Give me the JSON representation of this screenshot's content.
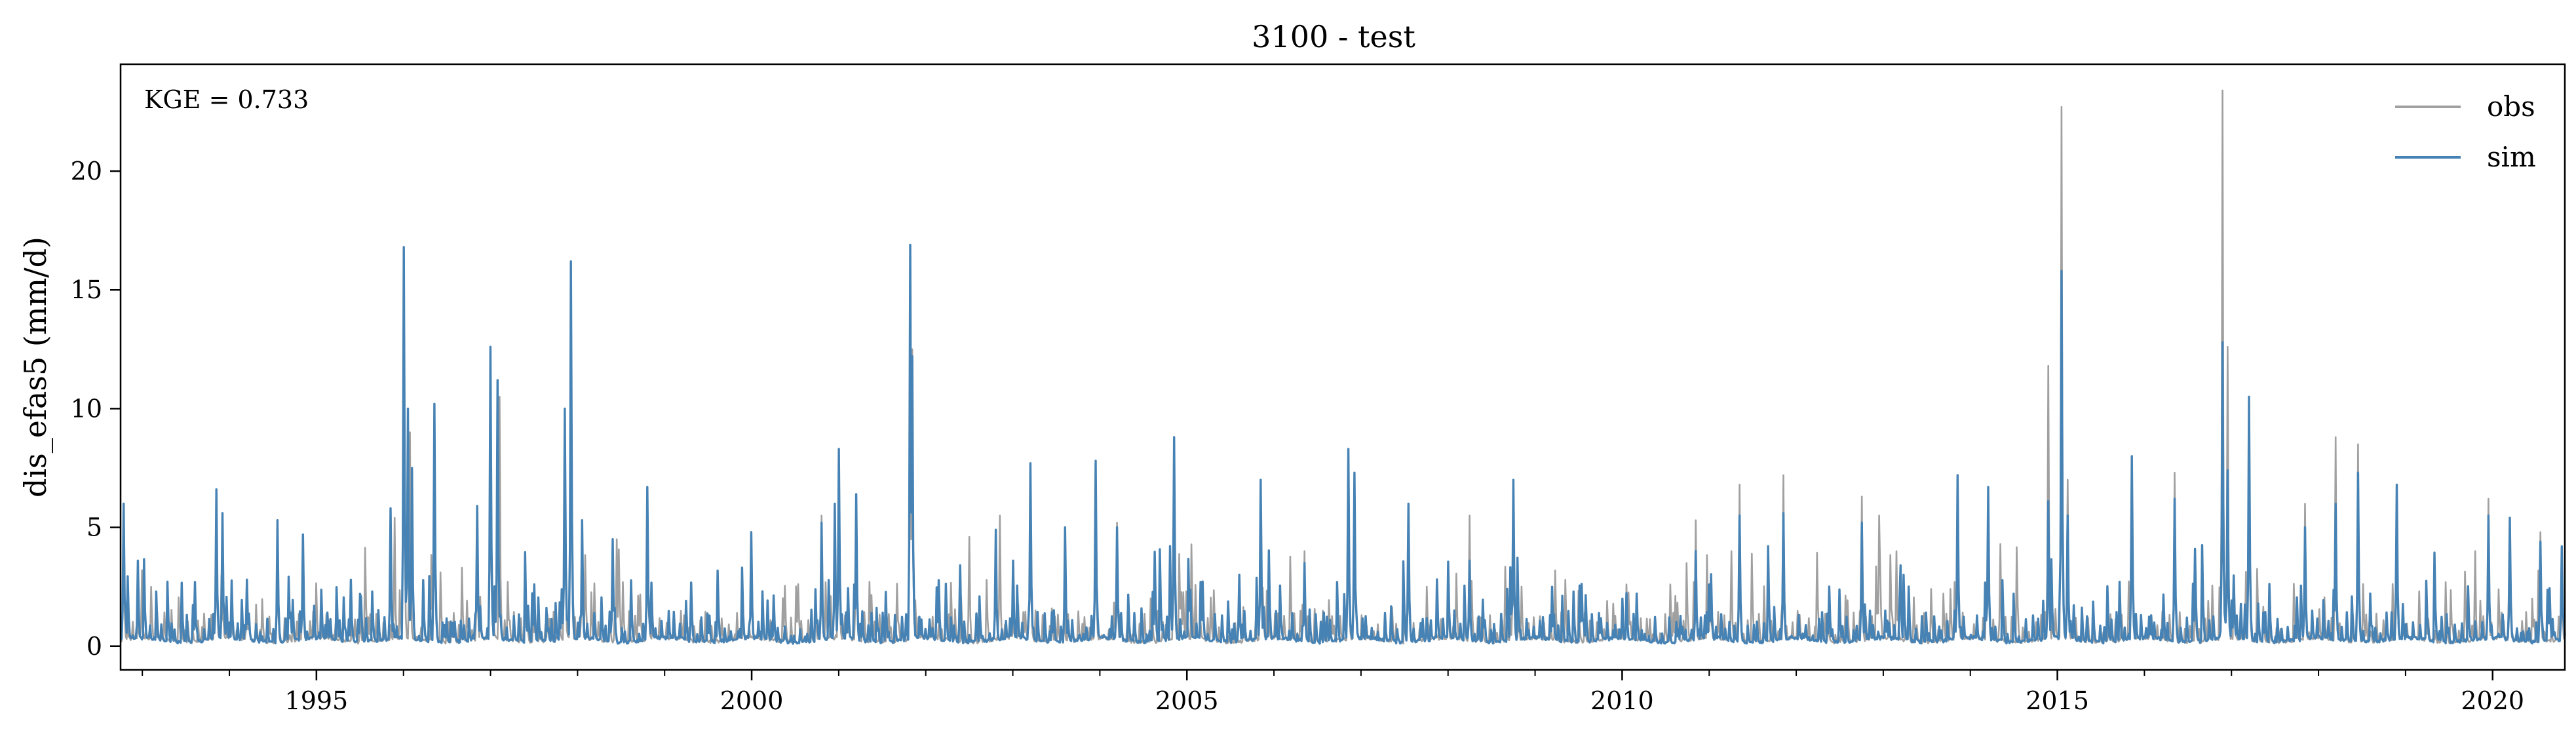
{
  "chart_data": {
    "type": "line",
    "title": "3100 - test",
    "xlabel": "",
    "ylabel": "dis_efas5 (mm/d)",
    "annotation": "KGE = 0.733",
    "xlim": [
      1992.75,
      2020.83
    ],
    "ylim": [
      -1.0,
      24.5
    ],
    "xticks": [
      {
        "value": 1995,
        "label": "1995"
      },
      {
        "value": 2000,
        "label": "2000"
      },
      {
        "value": 2005,
        "label": "2005"
      },
      {
        "value": 2010,
        "label": "2010"
      },
      {
        "value": 2015,
        "label": "2015"
      },
      {
        "value": 2020,
        "label": "2020"
      }
    ],
    "yticks": [
      {
        "value": 0,
        "label": "0"
      },
      {
        "value": 5,
        "label": "5"
      },
      {
        "value": 10,
        "label": "10"
      },
      {
        "value": 15,
        "label": "15"
      },
      {
        "value": 20,
        "label": "20"
      }
    ],
    "legend": {
      "location": "upper-right",
      "entries": [
        "obs",
        "sim"
      ]
    },
    "baseflow": {
      "min": 0.1,
      "max": 0.6
    },
    "series": [
      {
        "name": "obs",
        "color": "#a0a0a0",
        "peaks": [
          [
            1992.78,
            5.5
          ],
          [
            1993.0,
            3.2
          ],
          [
            1993.85,
            6.2
          ],
          [
            1994.2,
            2.6
          ],
          [
            1994.55,
            4.8
          ],
          [
            1994.85,
            4.3
          ],
          [
            1995.9,
            5.4
          ],
          [
            1996.0,
            15.8
          ],
          [
            1996.08,
            9.0
          ],
          [
            1996.35,
            9.5
          ],
          [
            1996.85,
            5.2
          ],
          [
            1997.0,
            12.0
          ],
          [
            1997.1,
            10.5
          ],
          [
            1997.85,
            9.3
          ],
          [
            1997.92,
            15.5
          ],
          [
            1998.05,
            5.0
          ],
          [
            1998.45,
            4.5
          ],
          [
            1998.8,
            6.3
          ],
          [
            2000.8,
            5.5
          ],
          [
            2001.0,
            8.0
          ],
          [
            2001.2,
            6.2
          ],
          [
            2001.82,
            16.5
          ],
          [
            2001.85,
            12.5
          ],
          [
            2002.5,
            4.6
          ],
          [
            2002.85,
            5.5
          ],
          [
            2003.2,
            7.4
          ],
          [
            2003.95,
            7.5
          ],
          [
            2004.2,
            5.2
          ],
          [
            2004.85,
            8.6
          ],
          [
            2005.85,
            6.7
          ],
          [
            2006.35,
            4.0
          ],
          [
            2006.85,
            8.0
          ],
          [
            2006.92,
            7.3
          ],
          [
            2007.55,
            5.9
          ],
          [
            2008.25,
            5.5
          ],
          [
            2008.75,
            6.8
          ],
          [
            2010.05,
            2.6
          ],
          [
            2010.85,
            5.3
          ],
          [
            2011.25,
            4.0
          ],
          [
            2011.35,
            6.8
          ],
          [
            2011.85,
            7.2
          ],
          [
            2012.75,
            6.3
          ],
          [
            2012.95,
            5.5
          ],
          [
            2013.15,
            4.0
          ],
          [
            2013.85,
            7.0
          ],
          [
            2014.2,
            6.4
          ],
          [
            2014.35,
            4.3
          ],
          [
            2014.9,
            11.8
          ],
          [
            2015.05,
            22.7
          ],
          [
            2015.12,
            7.0
          ],
          [
            2015.85,
            7.7
          ],
          [
            2016.35,
            7.3
          ],
          [
            2016.9,
            23.4
          ],
          [
            2016.95,
            12.6
          ],
          [
            2017.2,
            10.3
          ],
          [
            2017.85,
            6.0
          ],
          [
            2018.2,
            8.8
          ],
          [
            2018.45,
            8.5
          ],
          [
            2018.9,
            6.4
          ],
          [
            2019.8,
            4.0
          ],
          [
            2019.95,
            6.2
          ],
          [
            2020.2,
            5.2
          ],
          [
            2020.55,
            4.8
          ],
          [
            2020.8,
            4.0
          ]
        ]
      },
      {
        "name": "sim",
        "color": "#4682b4",
        "peaks": [
          [
            1992.78,
            6.0
          ],
          [
            1992.95,
            3.6
          ],
          [
            1993.6,
            2.7
          ],
          [
            1993.85,
            6.6
          ],
          [
            1993.92,
            5.6
          ],
          [
            1994.2,
            2.8
          ],
          [
            1994.55,
            5.3
          ],
          [
            1994.85,
            4.7
          ],
          [
            1995.5,
            2.2
          ],
          [
            1995.85,
            5.8
          ],
          [
            1996.0,
            16.8
          ],
          [
            1996.05,
            10.0
          ],
          [
            1996.1,
            7.5
          ],
          [
            1996.35,
            10.2
          ],
          [
            1996.85,
            5.9
          ],
          [
            1997.0,
            12.6
          ],
          [
            1997.08,
            11.2
          ],
          [
            1997.5,
            2.6
          ],
          [
            1997.85,
            10.0
          ],
          [
            1997.92,
            16.2
          ],
          [
            1998.05,
            5.3
          ],
          [
            1998.4,
            4.5
          ],
          [
            1998.8,
            6.7
          ],
          [
            1999.3,
            2.2
          ],
          [
            2000.0,
            4.8
          ],
          [
            2000.8,
            5.2
          ],
          [
            2000.95,
            6.0
          ],
          [
            2001.0,
            8.3
          ],
          [
            2001.2,
            6.4
          ],
          [
            2001.82,
            16.9
          ],
          [
            2001.85,
            12.2
          ],
          [
            2002.4,
            3.4
          ],
          [
            2002.8,
            4.9
          ],
          [
            2003.0,
            3.6
          ],
          [
            2003.2,
            7.7
          ],
          [
            2003.6,
            5.0
          ],
          [
            2003.95,
            7.8
          ],
          [
            2004.2,
            5.0
          ],
          [
            2004.85,
            8.8
          ],
          [
            2005.6,
            3.0
          ],
          [
            2005.85,
            7.0
          ],
          [
            2006.35,
            3.5
          ],
          [
            2006.85,
            8.3
          ],
          [
            2006.92,
            7.3
          ],
          [
            2007.55,
            6.0
          ],
          [
            2008.25,
            3.6
          ],
          [
            2008.75,
            7.0
          ],
          [
            2009.2,
            2.5
          ],
          [
            2010.0,
            2.0
          ],
          [
            2010.85,
            4.0
          ],
          [
            2011.35,
            5.5
          ],
          [
            2011.85,
            5.6
          ],
          [
            2012.75,
            5.2
          ],
          [
            2013.2,
            3.4
          ],
          [
            2013.85,
            7.2
          ],
          [
            2014.2,
            6.7
          ],
          [
            2014.9,
            6.1
          ],
          [
            2015.05,
            15.8
          ],
          [
            2015.12,
            5.5
          ],
          [
            2015.85,
            8.0
          ],
          [
            2016.35,
            6.2
          ],
          [
            2016.9,
            12.8
          ],
          [
            2016.95,
            7.4
          ],
          [
            2017.2,
            10.5
          ],
          [
            2017.85,
            5.0
          ],
          [
            2018.2,
            6.0
          ],
          [
            2018.45,
            7.3
          ],
          [
            2018.9,
            6.8
          ],
          [
            2019.95,
            5.5
          ],
          [
            2020.2,
            5.4
          ],
          [
            2020.55,
            4.4
          ],
          [
            2020.8,
            4.2
          ]
        ]
      }
    ]
  }
}
